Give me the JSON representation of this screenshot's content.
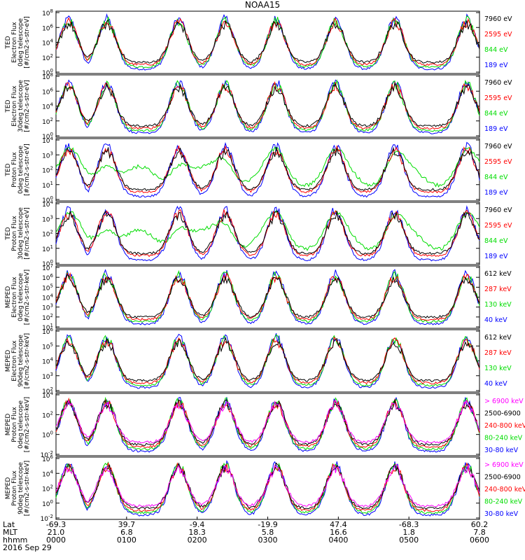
{
  "title": "NOAA15",
  "colors": {
    "black": "#000000",
    "red": "#ff0000",
    "green": "#00dd00",
    "blue": "#0000ff",
    "magenta": "#ff00ff"
  },
  "bottom_axis": {
    "row_labels": [
      "Lat",
      "MLT",
      "hhmm"
    ],
    "date": "2016 Sep 29",
    "ticks": [
      {
        "lat": "-69.3",
        "mlt": "21.0",
        "hhmm": "0000"
      },
      {
        "lat": "39.7",
        "mlt": "6.8",
        "hhmm": "0100"
      },
      {
        "lat": "-9.4",
        "mlt": "18.3",
        "hhmm": "0200"
      },
      {
        "lat": "-19.9",
        "mlt": "5.8",
        "hhmm": "0300"
      },
      {
        "lat": "47.4",
        "mlt": "16.6",
        "hhmm": "0400"
      },
      {
        "lat": "-68.3",
        "mlt": "1.8",
        "hhmm": "0500"
      },
      {
        "lat": "60.2",
        "mlt": "7.8",
        "hhmm": "0600"
      }
    ]
  },
  "chart_data": [
    {
      "type": "line",
      "ylabel": [
        "TED",
        "Electron Flux",
        "0deg telescope",
        "[#/cm2-s-str-eV]"
      ],
      "y_ticks": [
        "10^0",
        "10^2",
        "10^4",
        "10^6",
        "10^8"
      ],
      "ylim_exp": [
        0,
        8
      ],
      "series": [
        {
          "name": "7960 eV",
          "color": "black"
        },
        {
          "name": "2595 eV",
          "color": "red"
        },
        {
          "name": "844 eV",
          "color": "green"
        },
        {
          "name": "189 eV",
          "color": "blue"
        }
      ]
    },
    {
      "type": "line",
      "ylabel": [
        "TED",
        "Electron Flux",
        "30deg telescope",
        "[#/cm2-s-str-eV]"
      ],
      "y_ticks": [
        "10^0",
        "10^2",
        "10^4",
        "10^6",
        "10^8"
      ],
      "ylim_exp": [
        0,
        8
      ],
      "series": [
        {
          "name": "7960 eV",
          "color": "black"
        },
        {
          "name": "2595 eV",
          "color": "red"
        },
        {
          "name": "844 eV",
          "color": "green"
        },
        {
          "name": "189 eV",
          "color": "blue"
        }
      ]
    },
    {
      "type": "line",
      "ylabel": [
        "TED",
        "Proton Flux",
        "0deg telescope",
        "[#/cm2-s-str-eV]"
      ],
      "y_ticks": [
        "10^0",
        "10^1",
        "10^2",
        "10^3",
        "10^4"
      ],
      "ylim_exp": [
        0,
        4
      ],
      "series": [
        {
          "name": "7960 eV",
          "color": "black"
        },
        {
          "name": "2595 eV",
          "color": "red"
        },
        {
          "name": "844 eV",
          "color": "green"
        },
        {
          "name": "189 eV",
          "color": "blue"
        }
      ]
    },
    {
      "type": "line",
      "ylabel": [
        "TED",
        "Proton Flux",
        "30deg telescope",
        "[#/cm2-s-str-eV]"
      ],
      "y_ticks": [
        "10^0",
        "10^1",
        "10^2",
        "10^3",
        "10^4"
      ],
      "ylim_exp": [
        0,
        4
      ],
      "series": [
        {
          "name": "7960 eV",
          "color": "black"
        },
        {
          "name": "2595 eV",
          "color": "red"
        },
        {
          "name": "844 eV",
          "color": "green"
        },
        {
          "name": "189 eV",
          "color": "blue"
        }
      ]
    },
    {
      "type": "line",
      "ylabel": [
        "MEPED",
        "Electron Flux",
        "0deg telescope",
        "[#/cm2-s-str-keV]"
      ],
      "y_ticks": [
        "10^1",
        "10^2",
        "10^3",
        "10^4",
        "10^5",
        "10^6",
        "10^7"
      ],
      "ylim_exp": [
        1,
        7
      ],
      "series": [
        {
          "name": "612 keV",
          "color": "black"
        },
        {
          "name": "287 keV",
          "color": "red"
        },
        {
          "name": "130 keV",
          "color": "green"
        },
        {
          "name": "40 keV",
          "color": "blue"
        }
      ]
    },
    {
      "type": "line",
      "ylabel": [
        "MEPED",
        "Electron Flux",
        "90deg telescope",
        "[#/cm2-s-str-keV]"
      ],
      "y_ticks": [
        "10^2",
        "10^3",
        "10^4",
        "10^5",
        "10^6"
      ],
      "ylim_exp": [
        2,
        6
      ],
      "series": [
        {
          "name": "612 keV",
          "color": "black"
        },
        {
          "name": "287 keV",
          "color": "red"
        },
        {
          "name": "130 keV",
          "color": "green"
        },
        {
          "name": "40 keV",
          "color": "blue"
        }
      ]
    },
    {
      "type": "line",
      "ylabel": [
        "MEPED",
        "Proton Flux",
        "0deg telescope",
        "[#/cm2-s-str-keV]"
      ],
      "y_ticks": [
        "10^-2",
        "10^0",
        "10^2",
        "10^4"
      ],
      "ylim_exp": [
        -2,
        5
      ],
      "series": [
        {
          "name": "> 6900 keV",
          "color": "magenta"
        },
        {
          "name": "2500-6900",
          "color": "black"
        },
        {
          "name": "240-800 keV",
          "color": "red"
        },
        {
          "name": "80-240 keV",
          "color": "green"
        },
        {
          "name": "30-80 keV",
          "color": "blue"
        }
      ]
    },
    {
      "type": "line",
      "ylabel": [
        "MEPED",
        "Proton Flux",
        "90deg telescope",
        "[#/cm2-s-str-keV]"
      ],
      "y_ticks": [
        "10^-2",
        "10^0",
        "10^2",
        "10^4",
        "10^6"
      ],
      "ylim_exp": [
        -2,
        6
      ],
      "series": [
        {
          "name": "> 6900 keV",
          "color": "magenta"
        },
        {
          "name": "2500-6900",
          "color": "black"
        },
        {
          "name": "240-800 keV",
          "color": "red"
        },
        {
          "name": "80-240 keV",
          "color": "green"
        },
        {
          "name": "30-80 keV",
          "color": "blue"
        }
      ]
    }
  ]
}
